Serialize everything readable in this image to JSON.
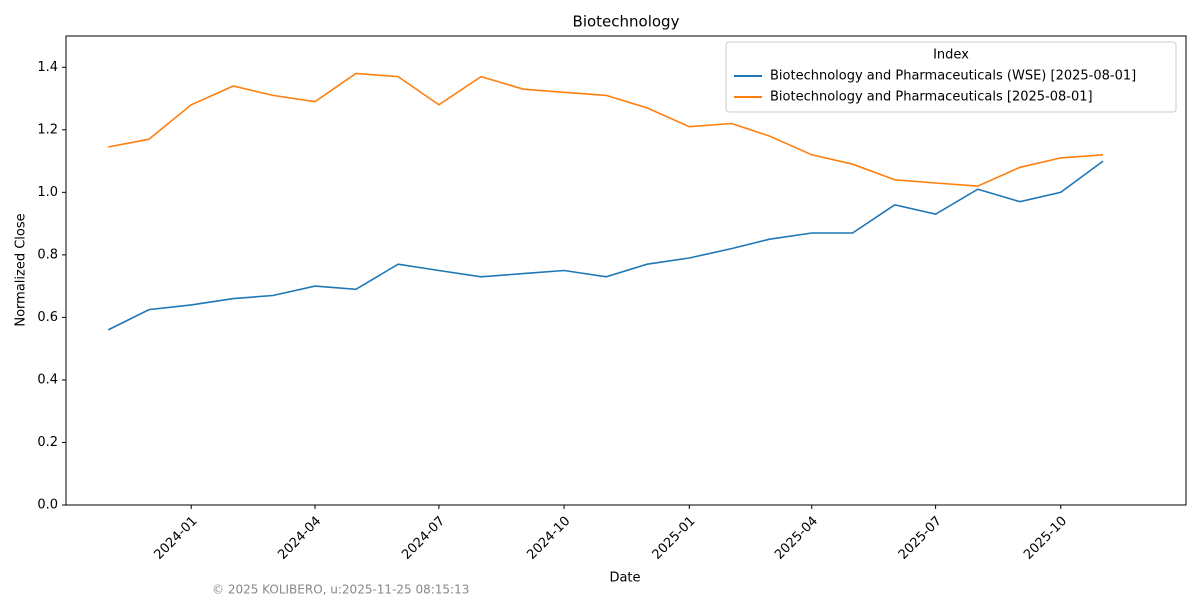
{
  "chart_data": {
    "type": "line",
    "title": "Biotechnology",
    "x_label": "Date",
    "y_label": "Normalized Close",
    "legend_title": "Index",
    "legend": "upper right",
    "footer": "© 2025 KOLIBERO, u:2025-11-25 08:15:13",
    "x": [
      "2023-11",
      "2023-12",
      "2024-01",
      "2024-02",
      "2024-03",
      "2024-04",
      "2024-05",
      "2024-06",
      "2024-07",
      "2024-08",
      "2024-09",
      "2024-10",
      "2024-11",
      "2024-12",
      "2025-01",
      "2025-02",
      "2025-03",
      "2025-04",
      "2025-05",
      "2025-06",
      "2025-07",
      "2025-08",
      "2025-09",
      "2025-10",
      "2025-11"
    ],
    "series": [
      {
        "name": "Biotechnology and Pharmaceuticals (WSE) [2025-08-01]",
        "color": "#1f77b4",
        "values": [
          0.56,
          0.625,
          0.64,
          0.66,
          0.67,
          0.7,
          0.69,
          0.77,
          0.75,
          0.73,
          0.74,
          0.75,
          0.73,
          0.77,
          0.79,
          0.82,
          0.85,
          0.87,
          0.87,
          0.96,
          0.93,
          1.01,
          0.97,
          1.0,
          1.1
        ]
      },
      {
        "name": "Biotechnology and Pharmaceuticals [2025-08-01]",
        "color": "#ff7f0e",
        "values": [
          1.145,
          1.17,
          1.28,
          1.34,
          1.31,
          1.29,
          1.38,
          1.37,
          1.28,
          1.37,
          1.33,
          1.32,
          1.31,
          1.27,
          1.21,
          1.22,
          1.18,
          1.12,
          1.09,
          1.04,
          1.03,
          1.02,
          1.08,
          1.11,
          1.12
        ]
      }
    ],
    "xlim": [
      "2023-10",
      "2026-01"
    ],
    "xticks": [
      "2024-01",
      "2024-04",
      "2024-07",
      "2024-10",
      "2025-01",
      "2025-04",
      "2025-07",
      "2025-10"
    ],
    "ylim": [
      0,
      1.5
    ],
    "yticks": [
      {
        "value": 0,
        "label": "0.0"
      },
      {
        "value": 0.2,
        "label": "0.2"
      },
      {
        "value": 0.4,
        "label": "0.4"
      },
      {
        "value": 0.6,
        "label": "0.6"
      },
      {
        "value": 0.8,
        "label": "0.8"
      },
      {
        "value": 1,
        "label": "1.0"
      },
      {
        "value": 1.2,
        "label": "1.2"
      },
      {
        "value": 1.4,
        "label": "1.4"
      }
    ],
    "grid": false
  }
}
